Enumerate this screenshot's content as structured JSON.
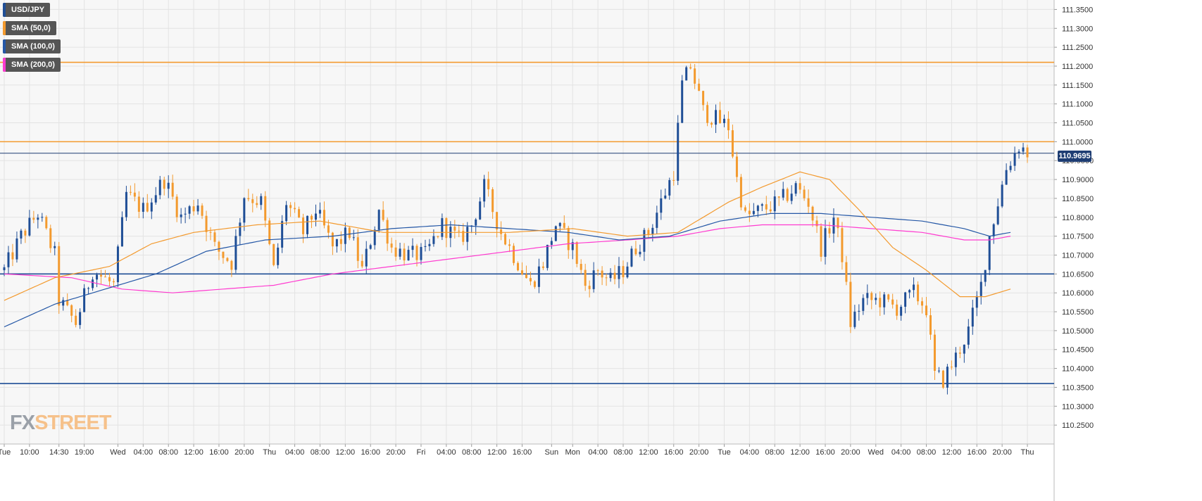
{
  "symbol": "USD/JPY",
  "legend": [
    {
      "label": "USD/JPY",
      "color": "#1f4e96"
    },
    {
      "label": "SMA (50,0)",
      "color": "#f39a2e"
    },
    {
      "label": "SMA (100,0)",
      "color": "#2457a6"
    },
    {
      "label": "SMA (200,0)",
      "color": "#ff3bd0"
    }
  ],
  "logo": {
    "part1": "FX",
    "part2": "STREET"
  },
  "last_price_label": "110.9695",
  "colors": {
    "bull": "#1f4e96",
    "bear": "#f39a2e",
    "sma50": "#f39a2e",
    "sma100": "#2457a6",
    "sma200": "#ff3bd0",
    "resistance": "#f39a2e",
    "support": "#1f4e96",
    "last": "#1e3d73"
  },
  "chart_data": {
    "type": "candlestick",
    "y_axis": {
      "ylim": [
        110.2,
        111.375
      ],
      "ticks": [
        "111.3500",
        "111.3000",
        "111.2500",
        "111.2000",
        "111.1500",
        "111.1000",
        "111.0500",
        "111.0000",
        "110.9500",
        "110.9000",
        "110.8500",
        "110.8000",
        "110.7500",
        "110.7000",
        "110.6500",
        "110.6000",
        "110.5500",
        "110.5000",
        "110.4500",
        "110.4000",
        "110.3500",
        "110.3000",
        "110.2500"
      ]
    },
    "x_axis": {
      "bars": 245,
      "labels": [
        {
          "bar": 0,
          "text": "Tue"
        },
        {
          "bar": 6,
          "text": "10:00"
        },
        {
          "bar": 13,
          "text": "14:30"
        },
        {
          "bar": 19,
          "text": "19:00"
        },
        {
          "bar": 27,
          "text": "Wed"
        },
        {
          "bar": 33,
          "text": "04:00"
        },
        {
          "bar": 39,
          "text": "08:00"
        },
        {
          "bar": 45,
          "text": "12:00"
        },
        {
          "bar": 51,
          "text": "16:00"
        },
        {
          "bar": 57,
          "text": "20:00"
        },
        {
          "bar": 63,
          "text": "Thu"
        },
        {
          "bar": 69,
          "text": "04:00"
        },
        {
          "bar": 75,
          "text": "08:00"
        },
        {
          "bar": 81,
          "text": "12:00"
        },
        {
          "bar": 87,
          "text": "16:00"
        },
        {
          "bar": 93,
          "text": "20:00"
        },
        {
          "bar": 99,
          "text": "Fri"
        },
        {
          "bar": 105,
          "text": "04:00"
        },
        {
          "bar": 111,
          "text": "08:00"
        },
        {
          "bar": 117,
          "text": "12:00"
        },
        {
          "bar": 123,
          "text": "16:00"
        },
        {
          "bar": 130,
          "text": "Sun"
        },
        {
          "bar": 135,
          "text": "Mon"
        },
        {
          "bar": 141,
          "text": "04:00"
        },
        {
          "bar": 147,
          "text": "08:00"
        },
        {
          "bar": 153,
          "text": "12:00"
        },
        {
          "bar": 159,
          "text": "16:00"
        },
        {
          "bar": 165,
          "text": "20:00"
        },
        {
          "bar": 171,
          "text": "Tue"
        },
        {
          "bar": 177,
          "text": "04:00"
        },
        {
          "bar": 183,
          "text": "08:00"
        },
        {
          "bar": 189,
          "text": "12:00"
        },
        {
          "bar": 195,
          "text": "16:00"
        },
        {
          "bar": 201,
          "text": "20:00"
        },
        {
          "bar": 207,
          "text": "Wed"
        },
        {
          "bar": 213,
          "text": "04:00"
        },
        {
          "bar": 219,
          "text": "08:00"
        },
        {
          "bar": 225,
          "text": "12:00"
        },
        {
          "bar": 231,
          "text": "16:00"
        },
        {
          "bar": 237,
          "text": "20:00"
        },
        {
          "bar": 243,
          "text": "Thu"
        }
      ]
    },
    "path": [
      {
        "bar": 0,
        "price": 110.66
      },
      {
        "bar": 4,
        "price": 110.75
      },
      {
        "bar": 8,
        "price": 110.81
      },
      {
        "bar": 12,
        "price": 110.7
      },
      {
        "bar": 13,
        "price": 110.58
      },
      {
        "bar": 17,
        "price": 110.52
      },
      {
        "bar": 21,
        "price": 110.66
      },
      {
        "bar": 26,
        "price": 110.62
      },
      {
        "bar": 29,
        "price": 110.86
      },
      {
        "bar": 33,
        "price": 110.82
      },
      {
        "bar": 38,
        "price": 110.9
      },
      {
        "bar": 42,
        "price": 110.8
      },
      {
        "bar": 46,
        "price": 110.84
      },
      {
        "bar": 50,
        "price": 110.72
      },
      {
        "bar": 54,
        "price": 110.68
      },
      {
        "bar": 57,
        "price": 110.86
      },
      {
        "bar": 61,
        "price": 110.84
      },
      {
        "bar": 64,
        "price": 110.66
      },
      {
        "bar": 67,
        "price": 110.84
      },
      {
        "bar": 71,
        "price": 110.76
      },
      {
        "bar": 74,
        "price": 110.82
      },
      {
        "bar": 78,
        "price": 110.72
      },
      {
        "bar": 82,
        "price": 110.76
      },
      {
        "bar": 85,
        "price": 110.66
      },
      {
        "bar": 89,
        "price": 110.82
      },
      {
        "bar": 92,
        "price": 110.72
      },
      {
        "bar": 96,
        "price": 110.7
      },
      {
        "bar": 100,
        "price": 110.7
      },
      {
        "bar": 104,
        "price": 110.78
      },
      {
        "bar": 108,
        "price": 110.74
      },
      {
        "bar": 111,
        "price": 110.78
      },
      {
        "bar": 114,
        "price": 110.88
      },
      {
        "bar": 118,
        "price": 110.76
      },
      {
        "bar": 121,
        "price": 110.7
      },
      {
        "bar": 125,
        "price": 110.62
      },
      {
        "bar": 128,
        "price": 110.68
      },
      {
        "bar": 131,
        "price": 110.78
      },
      {
        "bar": 135,
        "price": 110.72
      },
      {
        "bar": 138,
        "price": 110.62
      },
      {
        "bar": 141,
        "price": 110.66
      },
      {
        "bar": 144,
        "price": 110.63
      },
      {
        "bar": 147,
        "price": 110.66
      },
      {
        "bar": 150,
        "price": 110.72
      },
      {
        "bar": 153,
        "price": 110.76
      },
      {
        "bar": 156,
        "price": 110.84
      },
      {
        "bar": 159,
        "price": 110.92
      },
      {
        "bar": 161,
        "price": 111.15
      },
      {
        "bar": 163,
        "price": 111.2
      },
      {
        "bar": 166,
        "price": 111.08
      },
      {
        "bar": 169,
        "price": 111.06
      },
      {
        "bar": 172,
        "price": 111.04
      },
      {
        "bar": 174,
        "price": 110.9
      },
      {
        "bar": 176,
        "price": 110.8
      },
      {
        "bar": 180,
        "price": 110.82
      },
      {
        "bar": 184,
        "price": 110.84
      },
      {
        "bar": 188,
        "price": 110.88
      },
      {
        "bar": 191,
        "price": 110.84
      },
      {
        "bar": 194,
        "price": 110.72
      },
      {
        "bar": 197,
        "price": 110.8
      },
      {
        "bar": 199,
        "price": 110.7
      },
      {
        "bar": 201,
        "price": 110.52
      },
      {
        "bar": 204,
        "price": 110.58
      },
      {
        "bar": 208,
        "price": 110.58
      },
      {
        "bar": 212,
        "price": 110.56
      },
      {
        "bar": 216,
        "price": 110.6
      },
      {
        "bar": 219,
        "price": 110.56
      },
      {
        "bar": 221,
        "price": 110.38
      },
      {
        "bar": 223,
        "price": 110.37
      },
      {
        "bar": 226,
        "price": 110.43
      },
      {
        "bar": 229,
        "price": 110.5
      },
      {
        "bar": 232,
        "price": 110.62
      },
      {
        "bar": 234,
        "price": 110.75
      },
      {
        "bar": 236,
        "price": 110.84
      },
      {
        "bar": 238,
        "price": 110.93
      },
      {
        "bar": 241,
        "price": 110.99
      },
      {
        "bar": 243,
        "price": 110.97
      }
    ],
    "sma50": [
      {
        "bar": 0,
        "price": 110.58
      },
      {
        "bar": 12,
        "price": 110.64
      },
      {
        "bar": 25,
        "price": 110.67
      },
      {
        "bar": 35,
        "price": 110.73
      },
      {
        "bar": 45,
        "price": 110.76
      },
      {
        "bar": 60,
        "price": 110.78
      },
      {
        "bar": 75,
        "price": 110.79
      },
      {
        "bar": 90,
        "price": 110.76
      },
      {
        "bar": 105,
        "price": 110.76
      },
      {
        "bar": 120,
        "price": 110.76
      },
      {
        "bar": 135,
        "price": 110.77
      },
      {
        "bar": 148,
        "price": 110.75
      },
      {
        "bar": 160,
        "price": 110.76
      },
      {
        "bar": 172,
        "price": 110.84
      },
      {
        "bar": 180,
        "price": 110.88
      },
      {
        "bar": 189,
        "price": 110.92
      },
      {
        "bar": 196,
        "price": 110.9
      },
      {
        "bar": 203,
        "price": 110.82
      },
      {
        "bar": 211,
        "price": 110.72
      },
      {
        "bar": 219,
        "price": 110.66
      },
      {
        "bar": 227,
        "price": 110.59
      },
      {
        "bar": 233,
        "price": 110.59
      },
      {
        "bar": 239,
        "price": 110.61
      }
    ],
    "sma100": [
      {
        "bar": 0,
        "price": 110.51
      },
      {
        "bar": 12,
        "price": 110.57
      },
      {
        "bar": 24,
        "price": 110.61
      },
      {
        "bar": 36,
        "price": 110.65
      },
      {
        "bar": 48,
        "price": 110.71
      },
      {
        "bar": 62,
        "price": 110.74
      },
      {
        "bar": 78,
        "price": 110.75
      },
      {
        "bar": 92,
        "price": 110.77
      },
      {
        "bar": 106,
        "price": 110.78
      },
      {
        "bar": 120,
        "price": 110.77
      },
      {
        "bar": 134,
        "price": 110.76
      },
      {
        "bar": 146,
        "price": 110.74
      },
      {
        "bar": 158,
        "price": 110.75
      },
      {
        "bar": 170,
        "price": 110.79
      },
      {
        "bar": 182,
        "price": 110.81
      },
      {
        "bar": 194,
        "price": 110.81
      },
      {
        "bar": 206,
        "price": 110.8
      },
      {
        "bar": 218,
        "price": 110.79
      },
      {
        "bar": 228,
        "price": 110.77
      },
      {
        "bar": 234,
        "price": 110.75
      },
      {
        "bar": 239,
        "price": 110.76
      }
    ],
    "sma200": [
      {
        "bar": 0,
        "price": 110.65
      },
      {
        "bar": 16,
        "price": 110.64
      },
      {
        "bar": 28,
        "price": 110.61
      },
      {
        "bar": 40,
        "price": 110.6
      },
      {
        "bar": 52,
        "price": 110.61
      },
      {
        "bar": 64,
        "price": 110.62
      },
      {
        "bar": 78,
        "price": 110.65
      },
      {
        "bar": 92,
        "price": 110.67
      },
      {
        "bar": 106,
        "price": 110.69
      },
      {
        "bar": 120,
        "price": 110.71
      },
      {
        "bar": 134,
        "price": 110.73
      },
      {
        "bar": 148,
        "price": 110.74
      },
      {
        "bar": 160,
        "price": 110.75
      },
      {
        "bar": 170,
        "price": 110.77
      },
      {
        "bar": 180,
        "price": 110.78
      },
      {
        "bar": 194,
        "price": 110.78
      },
      {
        "bar": 206,
        "price": 110.77
      },
      {
        "bar": 218,
        "price": 110.76
      },
      {
        "bar": 228,
        "price": 110.74
      },
      {
        "bar": 234,
        "price": 110.74
      },
      {
        "bar": 239,
        "price": 110.75
      }
    ],
    "horizontal_lines": [
      {
        "kind": "resistance",
        "price": 111.21
      },
      {
        "kind": "resistance",
        "price": 111.0
      },
      {
        "kind": "last",
        "price": 110.9695
      },
      {
        "kind": "support",
        "price": 110.65
      },
      {
        "kind": "support",
        "price": 110.36
      }
    ],
    "grid": true
  }
}
